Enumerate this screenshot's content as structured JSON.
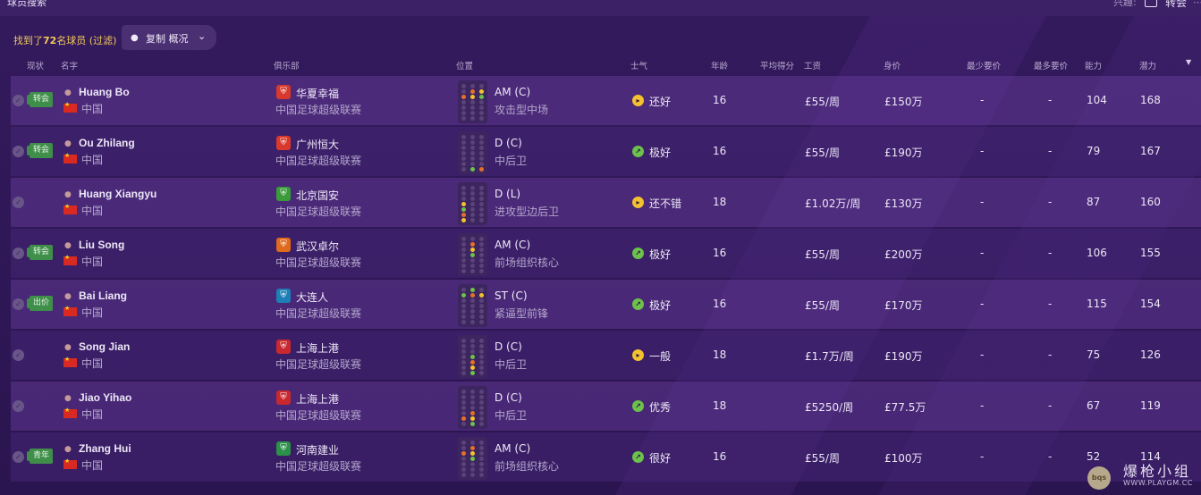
{
  "topbar": {
    "title": "球员搜索",
    "interest_label": "兴趣:",
    "transfer_label": "转会",
    "more": "⋯"
  },
  "filter": {
    "found_prefix": "找到了",
    "found_count": "72",
    "found_suffix": "名球员 (过滤)",
    "copy_label": "复制 概况"
  },
  "columns": [
    "现状",
    "名字",
    "俱乐部",
    "位置",
    "士气",
    "年龄",
    "平均得分",
    "工资",
    "身价",
    "最少要价",
    "最多要价",
    "能力",
    "潜力"
  ],
  "players": [
    {
      "status": "转会",
      "name": "Huang Bo",
      "nation": "中国",
      "club": "华夏幸福",
      "club_color": "#d8392c",
      "league": "中国足球超级联赛",
      "position": "AM (C)",
      "role": "攻击型中场",
      "morale": "还好",
      "morale_icon": "face-neutral",
      "morale_color": "#f3c22e",
      "age": "16",
      "wage": "£55/周",
      "value": "£150万",
      "min_fee": "-",
      "max_fee": "-",
      "ca": "104",
      "pa": "168",
      "dots": [
        [
          1,
          1
        ],
        [
          1,
          2
        ],
        [
          2,
          0
        ],
        [
          2,
          1
        ],
        [
          2,
          2
        ]
      ]
    },
    {
      "status": "转会",
      "name": "Ou Zhilang",
      "nation": "中国",
      "club": "广州恒大",
      "club_color": "#d8392c",
      "league": "中国足球超级联赛",
      "position": "D (C)",
      "role": "中后卫",
      "morale": "极好",
      "morale_icon": "thumbs-up",
      "morale_color": "#6cc24a",
      "age": "16",
      "wage": "£55/周",
      "value": "£190万",
      "min_fee": "-",
      "max_fee": "-",
      "ca": "79",
      "pa": "167",
      "dots": [
        [
          6,
          1
        ],
        [
          6,
          2
        ]
      ]
    },
    {
      "status": "",
      "name": "Huang Xiangyu",
      "nation": "中国",
      "club": "北京国安",
      "club_color": "#3a9b3a",
      "league": "中国足球超级联赛",
      "position": "D (L)",
      "role": "进攻型边后卫",
      "morale": "还不错",
      "morale_icon": "face-neutral",
      "morale_color": "#f3c22e",
      "age": "18",
      "wage": "£1.02万/周",
      "value": "£130万",
      "min_fee": "-",
      "max_fee": "-",
      "ca": "87",
      "pa": "160",
      "dots": [
        [
          3,
          0
        ],
        [
          4,
          0
        ],
        [
          5,
          0
        ],
        [
          6,
          0
        ]
      ]
    },
    {
      "status": "转会",
      "name": "Liu Song",
      "nation": "中国",
      "club": "武汉卓尔",
      "club_color": "#e06a1c",
      "league": "中国足球超级联赛",
      "position": "AM (C)",
      "role": "前场组织核心",
      "morale": "极好",
      "morale_icon": "thumbs-up",
      "morale_color": "#6cc24a",
      "age": "16",
      "wage": "£55/周",
      "value": "£200万",
      "min_fee": "-",
      "max_fee": "-",
      "ca": "106",
      "pa": "155",
      "dots": [
        [
          1,
          1
        ],
        [
          2,
          1
        ],
        [
          3,
          1
        ]
      ]
    },
    {
      "status": "出价",
      "name": "Bai Liang",
      "nation": "中国",
      "club": "大连人",
      "club_color": "#1d7fb5",
      "league": "中国足球超级联赛",
      "position": "ST (C)",
      "role": "紧逼型前锋",
      "morale": "极好",
      "morale_icon": "thumbs-up",
      "morale_color": "#6cc24a",
      "age": "16",
      "wage": "£55/周",
      "value": "£170万",
      "min_fee": "-",
      "max_fee": "-",
      "ca": "115",
      "pa": "154",
      "dots": [
        [
          0,
          1
        ],
        [
          1,
          0
        ],
        [
          1,
          1
        ],
        [
          1,
          2
        ]
      ]
    },
    {
      "status": "",
      "name": "Song Jian",
      "nation": "中国",
      "club": "上海上港",
      "club_color": "#c8282e",
      "league": "中国足球超级联赛",
      "position": "D (C)",
      "role": "中后卫",
      "morale": "一般",
      "morale_icon": "face-neutral",
      "morale_color": "#f3c22e",
      "age": "18",
      "wage": "£1.7万/周",
      "value": "£190万",
      "min_fee": "-",
      "max_fee": "-",
      "ca": "75",
      "pa": "126",
      "dots": [
        [
          3,
          1
        ],
        [
          4,
          1
        ],
        [
          5,
          1
        ],
        [
          6,
          1
        ]
      ]
    },
    {
      "status": "",
      "name": "Jiao Yihao",
      "nation": "中国",
      "club": "上海上港",
      "club_color": "#c8282e",
      "league": "中国足球超级联赛",
      "position": "D (C)",
      "role": "中后卫",
      "morale": "优秀",
      "morale_icon": "thumbs-up",
      "morale_color": "#6cc24a",
      "age": "18",
      "wage": "£5250/周",
      "value": "£77.5万",
      "min_fee": "-",
      "max_fee": "-",
      "ca": "67",
      "pa": "119",
      "dots": [
        [
          4,
          1
        ],
        [
          5,
          0
        ],
        [
          5,
          1
        ],
        [
          6,
          1
        ]
      ]
    },
    {
      "status": "青年",
      "name": "Zhang Hui",
      "nation": "中国",
      "club": "河南建业",
      "club_color": "#2c8f4a",
      "league": "中国足球超级联赛",
      "position": "AM (C)",
      "role": "前场组织核心",
      "morale": "很好",
      "morale_icon": "thumbs-up",
      "morale_color": "#6cc24a",
      "age": "16",
      "wage": "£55/周",
      "value": "£100万",
      "min_fee": "-",
      "max_fee": "-",
      "ca": "52",
      "pa": "114",
      "dots": [
        [
          1,
          1
        ],
        [
          2,
          0
        ],
        [
          2,
          1
        ],
        [
          3,
          1
        ]
      ]
    }
  ],
  "watermark": {
    "title": "爆枪小组",
    "url": "WWW.PLAYGM.CC",
    "icon_text": "bqs"
  }
}
